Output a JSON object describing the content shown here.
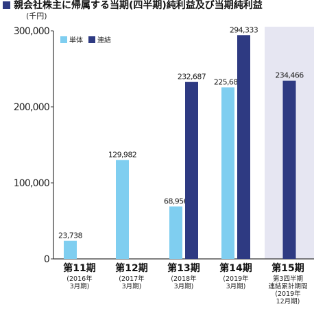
{
  "title": "親会社株主に帰属する当期(四半期)純利益及び当期純利益",
  "chart_data": {
    "type": "bar",
    "unit": "(千円)",
    "ylim": [
      0,
      300000
    ],
    "yticks": [
      "0",
      "100,000",
      "200,000",
      "300,000"
    ],
    "legend": {
      "position": "top-left"
    },
    "series": [
      {
        "name": "単体",
        "color": "#7fcef0"
      },
      {
        "name": "連結",
        "color": "#2e3a82"
      }
    ],
    "categories": [
      {
        "label": "第11期",
        "sub": [
          "(2016年",
          "3月期)"
        ]
      },
      {
        "label": "第12期",
        "sub": [
          "(2017年",
          "3月期)"
        ]
      },
      {
        "label": "第13期",
        "sub": [
          "(2018年",
          "3月期)"
        ]
      },
      {
        "label": "第14期",
        "sub": [
          "(2019年",
          "3月期)"
        ]
      },
      {
        "label": "第15期",
        "sub": [
          "第3四半期",
          "連結累計期間",
          "(2019年",
          "12月期)"
        ]
      }
    ],
    "bars": [
      {
        "cat": 0,
        "series": 0,
        "value": 23738,
        "label": "23,738"
      },
      {
        "cat": 1,
        "series": 0,
        "value": 129982,
        "label": "129,982"
      },
      {
        "cat": 2,
        "series": 0,
        "value": 68956,
        "label": "68,956"
      },
      {
        "cat": 2,
        "series": 1,
        "value": 232687,
        "label": "232,687"
      },
      {
        "cat": 3,
        "series": 0,
        "value": 225682,
        "label": "225,682"
      },
      {
        "cat": 3,
        "series": 1,
        "value": 294333,
        "label": "294,333"
      },
      {
        "cat": 4,
        "series": 1,
        "value": 234466,
        "label": "234,466"
      }
    ],
    "highlight_category": 4,
    "highlight_color": "#e6e6f2"
  }
}
